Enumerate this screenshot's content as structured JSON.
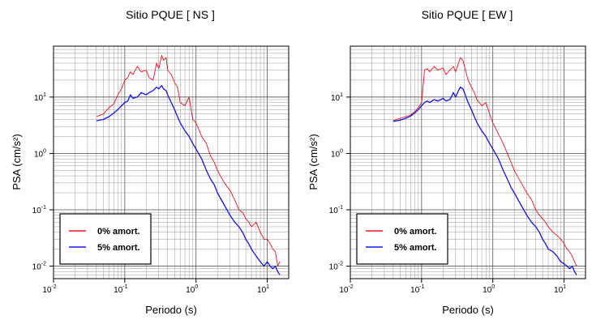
{
  "chart_data": [
    {
      "type": "line",
      "title": "Sitio PQUE [ NS ]",
      "xlabel": "Periodo (s)",
      "ylabel": "PSA (cm/s²)",
      "xscale": "log",
      "yscale": "log",
      "xlim": [
        0.01,
        20
      ],
      "ylim": [
        0.006,
        80
      ],
      "grid": true,
      "legend_position": "bottom-left",
      "xticks": [
        0.01,
        0.1,
        1,
        10
      ],
      "xtick_labels": [
        {
          "base": "10",
          "exp": "-2"
        },
        {
          "base": "10",
          "exp": "-1"
        },
        {
          "base": "10",
          "exp": "0"
        },
        {
          "base": "10",
          "exp": "1"
        }
      ],
      "yticks": [
        0.01,
        0.1,
        1,
        10
      ],
      "ytick_labels": [
        {
          "base": "10",
          "exp": "-2"
        },
        {
          "base": "10",
          "exp": "-1"
        },
        {
          "base": "10",
          "exp": "0"
        },
        {
          "base": "10",
          "exp": "1"
        }
      ],
      "series": [
        {
          "name": "0% amort.",
          "color": "#e8141e",
          "x": [
            0.04,
            0.05,
            0.06,
            0.07,
            0.08,
            0.09,
            0.1,
            0.11,
            0.12,
            0.13,
            0.15,
            0.17,
            0.2,
            0.22,
            0.25,
            0.28,
            0.3,
            0.33,
            0.35,
            0.38,
            0.4,
            0.45,
            0.5,
            0.55,
            0.6,
            0.7,
            0.8,
            0.9,
            1.0,
            1.2,
            1.4,
            1.6,
            1.8,
            2.0,
            2.5,
            3.0,
            3.5,
            4.0,
            4.5,
            5.0,
            5.5,
            6.0,
            7.0,
            8.0,
            9.0,
            10.0,
            11.0,
            12.0,
            13.0,
            14.0,
            15.0
          ],
          "y": [
            4.5,
            5.0,
            6.5,
            7.5,
            11,
            14,
            20,
            22,
            28,
            25,
            35,
            28,
            30,
            22,
            20,
            40,
            32,
            55,
            45,
            50,
            30,
            25,
            18,
            15,
            8,
            7,
            10,
            4,
            3.5,
            2.0,
            1.5,
            0.9,
            0.7,
            0.5,
            0.3,
            0.22,
            0.15,
            0.1,
            0.09,
            0.07,
            0.06,
            0.05,
            0.06,
            0.04,
            0.03,
            0.03,
            0.025,
            0.02,
            0.018,
            0.01,
            0.012
          ]
        },
        {
          "name": "5% amort.",
          "color": "#1414e8",
          "x": [
            0.04,
            0.05,
            0.06,
            0.07,
            0.08,
            0.09,
            0.1,
            0.11,
            0.12,
            0.13,
            0.15,
            0.17,
            0.2,
            0.22,
            0.25,
            0.28,
            0.3,
            0.33,
            0.35,
            0.38,
            0.4,
            0.45,
            0.5,
            0.55,
            0.6,
            0.7,
            0.8,
            0.9,
            1.0,
            1.2,
            1.4,
            1.6,
            1.8,
            2.0,
            2.5,
            3.0,
            3.5,
            4.0,
            4.5,
            5.0,
            5.5,
            6.0,
            7.0,
            8.0,
            9.0,
            10.0,
            11.0,
            12.0,
            13.0,
            14.0,
            15.0
          ],
          "y": [
            3.8,
            4.0,
            4.5,
            5.2,
            6.0,
            7.0,
            8.0,
            8.5,
            11,
            9.5,
            10,
            12,
            11,
            12,
            13,
            15,
            14,
            16,
            14,
            13,
            11,
            8,
            6,
            4.5,
            3.5,
            2.5,
            2.0,
            1.5,
            1.2,
            0.8,
            0.5,
            0.35,
            0.28,
            0.2,
            0.12,
            0.08,
            0.06,
            0.05,
            0.04,
            0.03,
            0.025,
            0.02,
            0.015,
            0.012,
            0.01,
            0.012,
            0.01,
            0.009,
            0.01,
            0.008,
            0.007
          ]
        }
      ]
    },
    {
      "type": "line",
      "title": "Sitio PQUE [ EW ]",
      "xlabel": "Periodo (s)",
      "ylabel": "PSA (cm/s²)",
      "xscale": "log",
      "yscale": "log",
      "xlim": [
        0.01,
        20
      ],
      "ylim": [
        0.006,
        80
      ],
      "grid": true,
      "legend_position": "bottom-left",
      "xticks": [
        0.01,
        0.1,
        1,
        10
      ],
      "xtick_labels": [
        {
          "base": "10",
          "exp": "-2"
        },
        {
          "base": "10",
          "exp": "-1"
        },
        {
          "base": "10",
          "exp": "0"
        },
        {
          "base": "10",
          "exp": "1"
        }
      ],
      "yticks": [
        0.01,
        0.1,
        1,
        10
      ],
      "ytick_labels": [
        {
          "base": "10",
          "exp": "-2"
        },
        {
          "base": "10",
          "exp": "-1"
        },
        {
          "base": "10",
          "exp": "0"
        },
        {
          "base": "10",
          "exp": "1"
        }
      ],
      "series": [
        {
          "name": "0% amort.",
          "color": "#e8141e",
          "x": [
            0.04,
            0.05,
            0.06,
            0.07,
            0.08,
            0.09,
            0.1,
            0.11,
            0.12,
            0.13,
            0.15,
            0.17,
            0.2,
            0.22,
            0.25,
            0.28,
            0.3,
            0.33,
            0.35,
            0.38,
            0.4,
            0.45,
            0.5,
            0.55,
            0.6,
            0.7,
            0.8,
            0.9,
            1.0,
            1.2,
            1.4,
            1.6,
            1.8,
            2.0,
            2.5,
            3.0,
            3.5,
            4.0,
            4.5,
            5.0,
            5.5,
            6.0,
            7.0,
            8.0,
            9.0,
            10.0,
            11.0,
            12.0,
            13.0,
            14.0,
            15.0
          ],
          "y": [
            3.8,
            4.2,
            4.5,
            4.8,
            5.5,
            6.5,
            8.0,
            30,
            32,
            28,
            35,
            30,
            33,
            25,
            30,
            35,
            28,
            40,
            50,
            45,
            35,
            20,
            15,
            12,
            9,
            7,
            8,
            5,
            3.5,
            2.2,
            1.5,
            1.0,
            0.7,
            0.5,
            0.3,
            0.2,
            0.15,
            0.1,
            0.08,
            0.07,
            0.06,
            0.05,
            0.04,
            0.035,
            0.03,
            0.025,
            0.02,
            0.018,
            0.015,
            0.012,
            0.01
          ]
        },
        {
          "name": "5% amort.",
          "color": "#1414e8",
          "x": [
            0.04,
            0.05,
            0.06,
            0.07,
            0.08,
            0.09,
            0.1,
            0.11,
            0.12,
            0.13,
            0.15,
            0.17,
            0.2,
            0.22,
            0.25,
            0.28,
            0.3,
            0.33,
            0.35,
            0.38,
            0.4,
            0.45,
            0.5,
            0.55,
            0.6,
            0.7,
            0.8,
            0.9,
            1.0,
            1.2,
            1.4,
            1.6,
            1.8,
            2.0,
            2.5,
            3.0,
            3.5,
            4.0,
            4.5,
            5.0,
            5.5,
            6.0,
            7.0,
            8.0,
            9.0,
            10.0,
            11.0,
            12.0,
            13.0,
            14.0,
            15.0
          ],
          "y": [
            3.7,
            3.9,
            4.2,
            4.6,
            5.2,
            6.0,
            7.0,
            8.0,
            8.5,
            8.0,
            9.0,
            8.5,
            9.5,
            8.5,
            9.0,
            12,
            10,
            13,
            15,
            14,
            12,
            8,
            6,
            4.5,
            3.5,
            2.5,
            2.0,
            1.5,
            1.2,
            0.8,
            0.5,
            0.35,
            0.25,
            0.2,
            0.12,
            0.08,
            0.06,
            0.05,
            0.04,
            0.03,
            0.025,
            0.02,
            0.018,
            0.015,
            0.012,
            0.011,
            0.01,
            0.009,
            0.01,
            0.008,
            0.007
          ]
        }
      ]
    }
  ]
}
